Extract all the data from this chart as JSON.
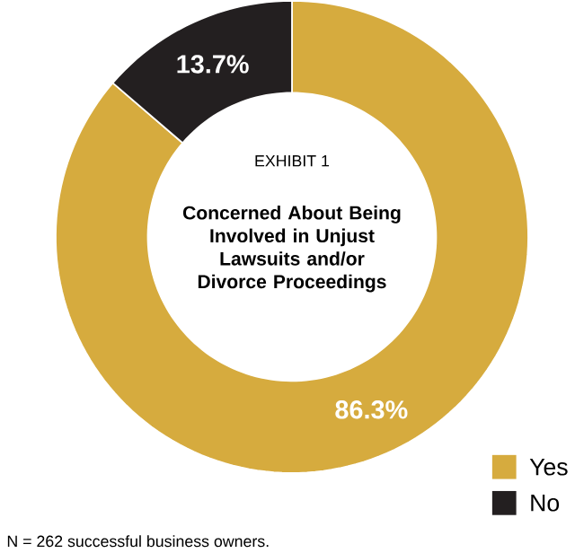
{
  "chart_data": {
    "type": "donut",
    "subtitle": "EXHIBIT 1",
    "title": "Concerned About Being Involved in Unjust Lawsuits and/or Divorce Proceedings",
    "categories": [
      "Yes",
      "No"
    ],
    "values": [
      86.3,
      13.7
    ],
    "colors": [
      "#d6ab3e",
      "#231f20"
    ],
    "value_labels": [
      "86.3%",
      "13.7%"
    ],
    "legend": "bottom right",
    "annotations": [
      "N = 262 successful business owners."
    ]
  }
}
